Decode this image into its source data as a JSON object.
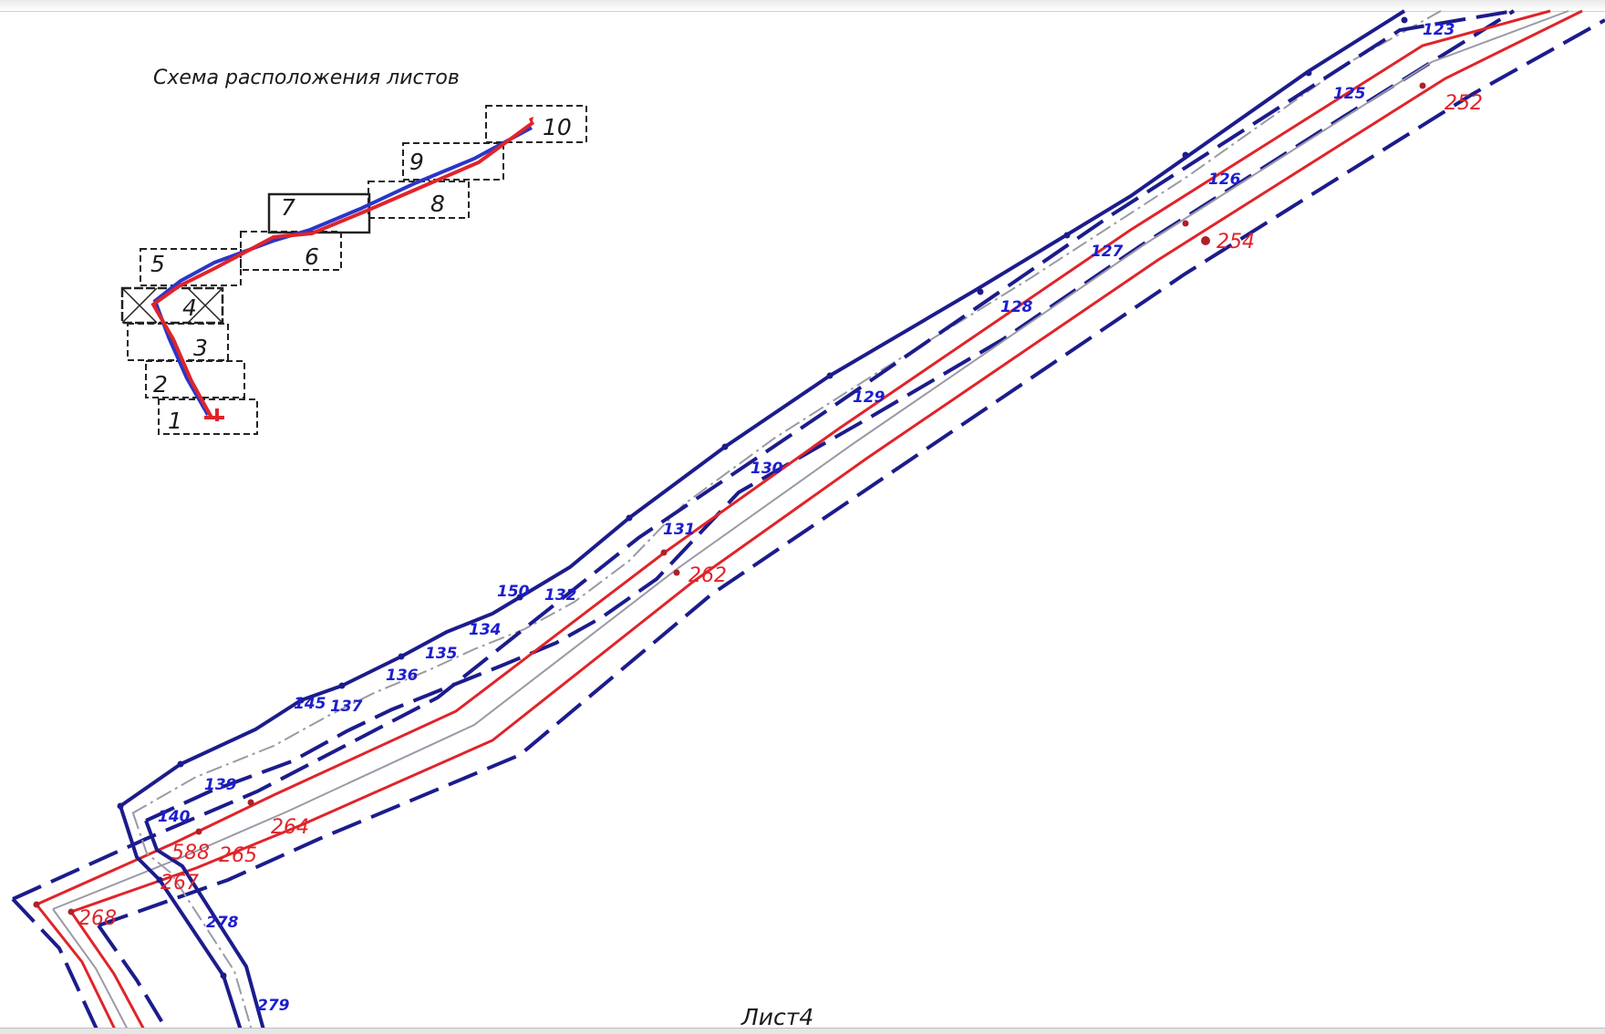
{
  "scheme": {
    "title": "Схема расположения листов",
    "sheets": [
      "1",
      "2",
      "3",
      "4",
      "5",
      "6",
      "7",
      "8",
      "9",
      "10"
    ]
  },
  "labels": {
    "blue": [
      "123",
      "125",
      "126",
      "127",
      "128",
      "129",
      "130",
      "131",
      "150",
      "132",
      "134",
      "135",
      "136",
      "145",
      "137",
      "139",
      "140",
      "278",
      "279"
    ],
    "red": [
      "252",
      "254",
      "262",
      "264",
      "588",
      "265",
      "267",
      "268"
    ]
  },
  "footer": "Лист4",
  "colors": {
    "blue_line": "#1c1c8c",
    "blue_label": "#1d1dcf",
    "red_line": "#e0242a",
    "gray_line": "#9a9aa6"
  }
}
